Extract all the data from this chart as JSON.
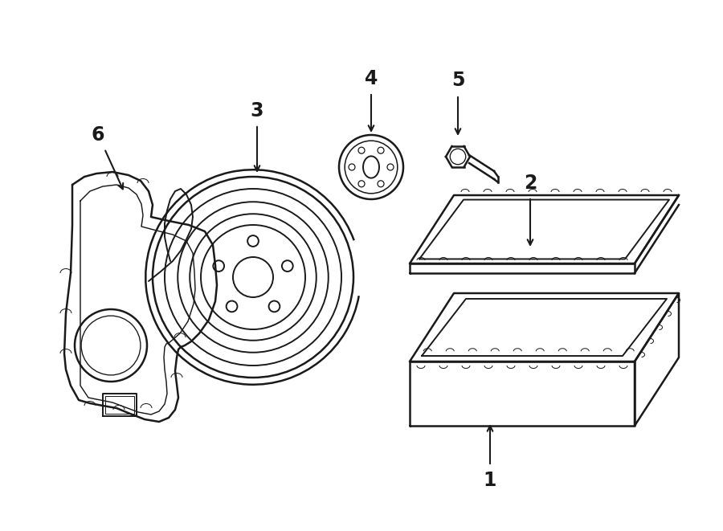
{
  "background": "#ffffff",
  "line_color": "#1a1a1a",
  "lw": 1.4,
  "lw_thick": 1.8,
  "lw_thin": 0.9,
  "figsize": [
    9.0,
    6.61
  ],
  "dpi": 100
}
